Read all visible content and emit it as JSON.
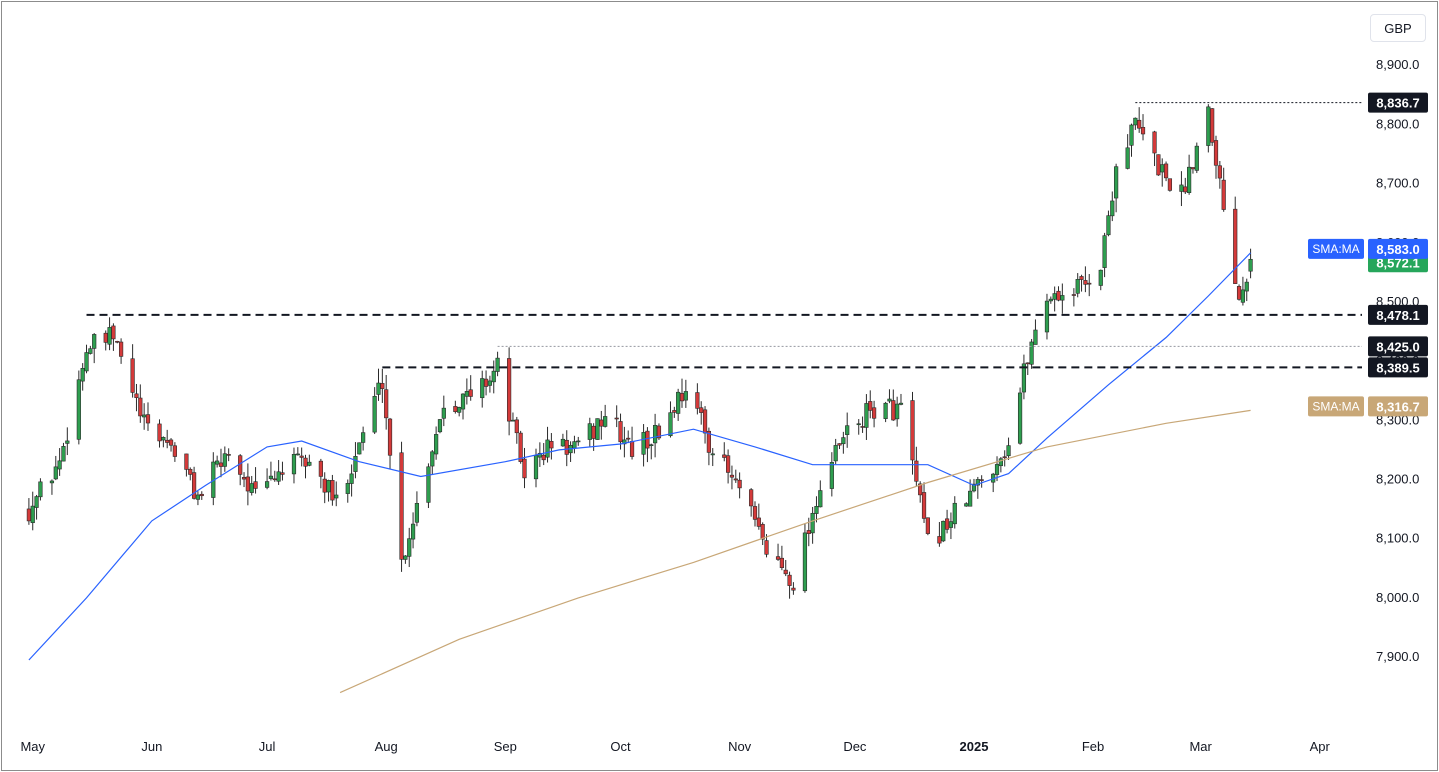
{
  "header": {
    "currency": "GBP"
  },
  "chart_data": {
    "type": "candlestick",
    "currency": "GBP",
    "ylim": [
      7820,
      8960
    ],
    "y_ticks": [
      "7,900.0",
      "8,000.0",
      "8,100.0",
      "8,200.0",
      "8,300.0",
      "8,400.0",
      "8,500.0",
      "8,600.0",
      "8,700.0",
      "8,800.0",
      "8,900.0"
    ],
    "x_ticks": [
      {
        "label": "May",
        "date": "2024-05-01"
      },
      {
        "label": "Jun",
        "date": "2024-06-01"
      },
      {
        "label": "Jul",
        "date": "2024-07-01"
      },
      {
        "label": "Aug",
        "date": "2024-08-01"
      },
      {
        "label": "Sep",
        "date": "2024-09-01"
      },
      {
        "label": "Oct",
        "date": "2024-10-01"
      },
      {
        "label": "Nov",
        "date": "2024-11-01"
      },
      {
        "label": "Dec",
        "date": "2024-12-01"
      },
      {
        "label": "2025",
        "date": "2025-01-01",
        "bold": true
      },
      {
        "label": "Feb",
        "date": "2025-02-01"
      },
      {
        "label": "Mar",
        "date": "2025-03-01"
      },
      {
        "label": "Apr",
        "date": "2025-04-01"
      }
    ],
    "anchors": [
      [
        "2024-04-30",
        8150
      ],
      [
        "2024-05-08",
        8230
      ],
      [
        "2024-05-15",
        8420
      ],
      [
        "2024-05-22",
        8440
      ],
      [
        "2024-05-30",
        8290
      ],
      [
        "2024-06-06",
        8260
      ],
      [
        "2024-06-13",
        8170
      ],
      [
        "2024-06-21",
        8250
      ],
      [
        "2024-06-28",
        8170
      ],
      [
        "2024-07-05",
        8220
      ],
      [
        "2024-07-12",
        8230
      ],
      [
        "2024-07-19",
        8160
      ],
      [
        "2024-07-26",
        8280
      ],
      [
        "2024-07-31",
        8370
      ],
      [
        "2024-08-05",
        8060
      ],
      [
        "2024-08-09",
        8160
      ],
      [
        "2024-08-16",
        8330
      ],
      [
        "2024-08-23",
        8340
      ],
      [
        "2024-08-30",
        8390
      ],
      [
        "2024-09-06",
        8210
      ],
      [
        "2024-09-13",
        8260
      ],
      [
        "2024-09-20",
        8250
      ],
      [
        "2024-09-27",
        8310
      ],
      [
        "2024-10-04",
        8250
      ],
      [
        "2024-10-11",
        8280
      ],
      [
        "2024-10-18",
        8360
      ],
      [
        "2024-10-25",
        8250
      ],
      [
        "2024-11-01",
        8180
      ],
      [
        "2024-11-08",
        8080
      ],
      [
        "2024-11-15",
        8030
      ],
      [
        "2024-11-22",
        8190
      ],
      [
        "2024-11-29",
        8280
      ],
      [
        "2024-12-06",
        8320
      ],
      [
        "2024-12-13",
        8320
      ],
      [
        "2024-12-20",
        8090
      ],
      [
        "2024-12-27",
        8140
      ],
      [
        "2025-01-03",
        8200
      ],
      [
        "2025-01-10",
        8260
      ],
      [
        "2025-01-15",
        8410
      ],
      [
        "2025-01-20",
        8510
      ],
      [
        "2025-01-27",
        8520
      ],
      [
        "2025-02-03",
        8560
      ],
      [
        "2025-02-07",
        8730
      ],
      [
        "2025-02-12",
        8800
      ],
      [
        "2025-02-18",
        8730
      ],
      [
        "2025-02-24",
        8680
      ],
      [
        "2025-03-03",
        8830
      ],
      [
        "2025-03-07",
        8660
      ],
      [
        "2025-03-11",
        8510
      ],
      [
        "2025-03-14",
        8572
      ]
    ],
    "series": [
      {
        "name": "SMA:MA",
        "color": "#2962ff",
        "last_value": 8583.0,
        "points": [
          [
            "2024-04-30",
            7895
          ],
          [
            "2024-05-15",
            8000
          ],
          [
            "2024-06-01",
            8130
          ],
          [
            "2024-06-15",
            8190
          ],
          [
            "2024-07-01",
            8255
          ],
          [
            "2024-07-10",
            8265
          ],
          [
            "2024-07-25",
            8230
          ],
          [
            "2024-08-10",
            8205
          ],
          [
            "2024-09-01",
            8230
          ],
          [
            "2024-09-15",
            8250
          ],
          [
            "2024-10-01",
            8260
          ],
          [
            "2024-10-20",
            8285
          ],
          [
            "2024-11-05",
            8255
          ],
          [
            "2024-11-20",
            8225
          ],
          [
            "2024-12-05",
            8225
          ],
          [
            "2024-12-20",
            8225
          ],
          [
            "2025-01-01",
            8190
          ],
          [
            "2025-01-10",
            8210
          ],
          [
            "2025-01-20",
            8270
          ],
          [
            "2025-02-05",
            8360
          ],
          [
            "2025-02-20",
            8440
          ],
          [
            "2025-03-03",
            8510
          ],
          [
            "2025-03-14",
            8583
          ]
        ]
      },
      {
        "name": "SMA:MA",
        "color": "#c8a777",
        "last_value": 8316.7,
        "points": [
          [
            "2024-07-20",
            7840
          ],
          [
            "2024-08-20",
            7930
          ],
          [
            "2024-09-20",
            8000
          ],
          [
            "2024-10-20",
            8060
          ],
          [
            "2024-11-20",
            8130
          ],
          [
            "2024-12-20",
            8195
          ],
          [
            "2025-01-20",
            8255
          ],
          [
            "2025-02-20",
            8295
          ],
          [
            "2025-03-14",
            8316.7
          ]
        ]
      }
    ],
    "price_lines": [
      {
        "value": 8836.7,
        "label": "8,836.7",
        "style": "dotted",
        "from": "2025-02-12"
      },
      {
        "value": 8478.1,
        "label": "8,478.1",
        "style": "dashed",
        "from": "2024-05-15"
      },
      {
        "value": 8425.0,
        "label": "8,425.0",
        "style": "dotted-grey",
        "from": "2024-08-30"
      },
      {
        "value": 8389.5,
        "label": "8,389.5",
        "style": "dashed",
        "from": "2024-07-31"
      }
    ],
    "last_price": {
      "value": 8572.1,
      "label": "8,572.1",
      "color": "#26a65b"
    },
    "sma_labels": [
      {
        "name": "SMA:MA",
        "value": "8,583.0",
        "color": "#2962ff"
      },
      {
        "name": "SMA:MA",
        "value": "8,316.7",
        "color": "#c8a777"
      }
    ],
    "colors": {
      "up": "#2e9e4f",
      "down": "#d43a3a"
    }
  }
}
